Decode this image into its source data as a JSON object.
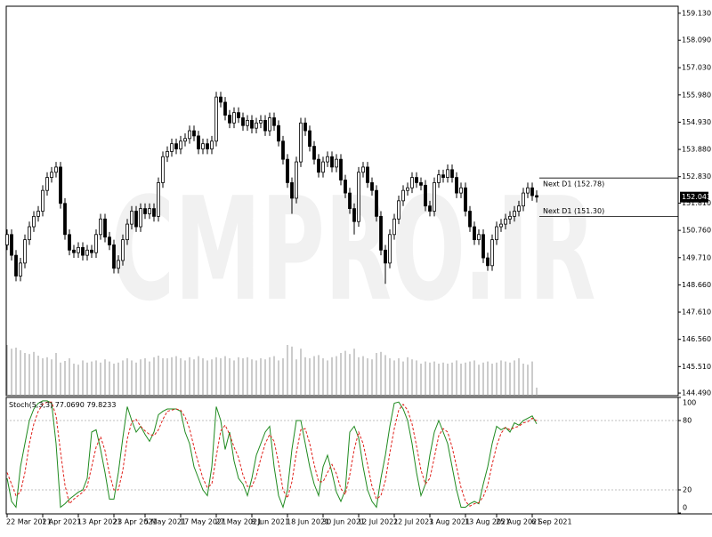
{
  "watermark": "CMPRO.IR",
  "chart_data": [
    {
      "type": "candlestick",
      "categories": [
        "22 Mar 2021",
        null,
        null,
        null,
        null,
        null,
        null,
        null,
        "1 Apr 2021",
        null,
        null,
        null,
        null,
        null,
        null,
        null,
        "13 Apr 2021",
        null,
        null,
        null,
        null,
        null,
        null,
        null,
        "23 Apr 2021",
        null,
        null,
        null,
        null,
        null,
        null,
        "5 May 2021",
        null,
        null,
        null,
        null,
        null,
        null,
        null,
        "17 May 2021",
        null,
        null,
        null,
        null,
        null,
        null,
        null,
        "27 May 2021",
        null,
        null,
        null,
        null,
        null,
        null,
        null,
        "8 Jun 2021",
        null,
        null,
        null,
        null,
        null,
        null,
        null,
        "18 Jun 2021",
        null,
        null,
        null,
        null,
        null,
        null,
        null,
        "30 Jun 2021",
        null,
        null,
        null,
        null,
        null,
        null,
        null,
        "12 Jul 2021",
        null,
        null,
        null,
        null,
        null,
        null,
        null,
        "22 Jul 2021",
        null,
        null,
        null,
        null,
        null,
        null,
        null,
        "3 Aug 2021",
        null,
        null,
        null,
        null,
        null,
        null,
        null,
        "13 Aug 2021",
        null,
        null,
        null,
        null,
        null,
        null,
        "25 Aug 2021",
        null,
        null,
        null,
        null,
        null,
        null,
        null,
        "6 Sep 2021",
        null
      ],
      "open": [
        150.2,
        150.6,
        149.8,
        149.0,
        149.5,
        150.4,
        150.9,
        151.3,
        151.5,
        152.3,
        152.8,
        153.0,
        153.2,
        151.8,
        150.6,
        150.0,
        149.9,
        150.1,
        149.8,
        150.0,
        149.9,
        150.6,
        151.2,
        150.5,
        150.2,
        149.3,
        149.6,
        150.4,
        151.0,
        151.5,
        150.9,
        151.6,
        151.4,
        151.6,
        151.3,
        152.6,
        153.6,
        153.8,
        154.1,
        153.9,
        154.2,
        154.3,
        154.6,
        154.4,
        153.9,
        154.1,
        153.9,
        154.2,
        155.9,
        155.7,
        155.2,
        154.9,
        155.3,
        155.1,
        154.8,
        155.0,
        154.7,
        154.9,
        155.0,
        154.6,
        155.1,
        154.8,
        154.2,
        153.5,
        152.6,
        152.0,
        153.4,
        154.9,
        154.6,
        154.0,
        153.5,
        153.0,
        153.4,
        153.6,
        153.2,
        153.5,
        152.7,
        152.2,
        151.6,
        151.1,
        153.0,
        153.2,
        152.6,
        152.3,
        151.3,
        150.0,
        149.5,
        150.6,
        151.2,
        151.9,
        152.3,
        152.4,
        152.8,
        152.6,
        152.5,
        151.7,
        151.5,
        152.6,
        152.9,
        152.8,
        153.1,
        152.8,
        152.2,
        152.4,
        151.5,
        150.9,
        150.4,
        150.6,
        149.7,
        149.4,
        150.4,
        150.9,
        151.0,
        151.2,
        151.3,
        151.5,
        151.7,
        152.2,
        152.4,
        152.1
      ],
      "high": [
        150.8,
        150.8,
        150.0,
        149.7,
        150.6,
        151.1,
        151.5,
        151.7,
        152.5,
        153.0,
        153.2,
        153.4,
        153.4,
        152.0,
        150.8,
        150.2,
        150.3,
        150.3,
        150.2,
        150.2,
        150.8,
        151.4,
        151.4,
        150.7,
        150.4,
        149.8,
        150.6,
        151.2,
        151.7,
        151.7,
        151.8,
        151.8,
        151.8,
        151.8,
        152.8,
        153.8,
        154.0,
        154.3,
        154.3,
        154.4,
        154.5,
        154.8,
        154.8,
        154.6,
        154.3,
        154.3,
        154.4,
        156.1,
        156.1,
        155.9,
        155.4,
        155.5,
        155.5,
        155.3,
        155.2,
        155.2,
        155.1,
        155.2,
        155.2,
        155.3,
        155.3,
        155.0,
        154.4,
        153.7,
        152.8,
        153.6,
        155.1,
        155.1,
        154.8,
        154.2,
        153.7,
        153.6,
        153.8,
        153.8,
        153.7,
        153.7,
        152.9,
        152.4,
        151.8,
        153.2,
        153.4,
        153.4,
        152.8,
        152.5,
        151.5,
        150.2,
        150.8,
        151.4,
        152.1,
        152.5,
        152.6,
        153.0,
        153.0,
        152.8,
        152.7,
        151.9,
        152.8,
        153.1,
        153.1,
        153.3,
        153.3,
        153.0,
        152.6,
        152.6,
        151.7,
        151.1,
        150.8,
        150.8,
        149.9,
        150.6,
        151.1,
        151.2,
        151.4,
        151.5,
        151.7,
        151.9,
        152.4,
        152.6,
        152.6,
        152.3
      ],
      "low": [
        150.0,
        149.6,
        148.8,
        148.8,
        149.3,
        150.2,
        150.7,
        151.1,
        151.3,
        152.1,
        152.6,
        152.8,
        151.6,
        150.4,
        149.8,
        149.7,
        149.7,
        149.6,
        149.6,
        149.7,
        149.7,
        150.4,
        150.3,
        150.0,
        149.1,
        149.1,
        149.4,
        150.2,
        150.8,
        150.7,
        150.7,
        151.2,
        151.2,
        151.1,
        151.1,
        152.4,
        153.4,
        153.6,
        153.7,
        153.7,
        154.0,
        154.1,
        154.2,
        153.7,
        153.7,
        153.7,
        153.7,
        154.0,
        155.5,
        155.0,
        154.7,
        154.7,
        154.9,
        154.6,
        154.6,
        154.5,
        154.5,
        154.7,
        154.4,
        154.4,
        154.6,
        154.0,
        153.3,
        152.4,
        151.4,
        151.8,
        153.2,
        154.4,
        153.8,
        153.3,
        152.8,
        152.8,
        153.2,
        153.0,
        153.0,
        152.5,
        152.0,
        151.4,
        150.6,
        150.9,
        152.8,
        152.4,
        152.1,
        151.1,
        149.8,
        148.7,
        149.3,
        150.4,
        151.0,
        151.7,
        152.1,
        152.2,
        152.4,
        152.3,
        151.5,
        151.3,
        151.3,
        152.4,
        152.6,
        152.6,
        152.6,
        152.0,
        152.0,
        151.3,
        150.7,
        150.2,
        150.2,
        149.5,
        149.2,
        149.2,
        150.2,
        150.7,
        150.8,
        151.0,
        151.1,
        151.3,
        151.5,
        152.0,
        151.9,
        151.84
      ],
      "close": [
        150.6,
        149.8,
        149.0,
        149.5,
        150.4,
        150.9,
        151.3,
        151.5,
        152.3,
        152.8,
        153.0,
        153.2,
        151.8,
        150.6,
        150.0,
        149.9,
        150.1,
        149.8,
        150.0,
        149.9,
        150.6,
        151.2,
        150.5,
        150.2,
        149.3,
        149.6,
        150.4,
        151.0,
        151.5,
        150.9,
        151.6,
        151.4,
        151.6,
        151.3,
        152.6,
        153.6,
        153.8,
        154.1,
        153.9,
        154.2,
        154.3,
        154.6,
        154.4,
        153.9,
        154.1,
        153.9,
        154.2,
        155.9,
        155.7,
        155.2,
        154.9,
        155.3,
        155.1,
        154.8,
        155.0,
        154.7,
        154.9,
        155.0,
        154.6,
        155.1,
        154.8,
        154.2,
        153.5,
        152.6,
        152.0,
        153.4,
        154.9,
        154.6,
        154.0,
        153.5,
        153.0,
        153.4,
        153.6,
        153.2,
        153.5,
        152.7,
        152.2,
        151.6,
        151.1,
        153.0,
        153.2,
        152.6,
        152.3,
        151.3,
        150.0,
        149.5,
        150.6,
        151.2,
        151.9,
        152.3,
        152.4,
        152.8,
        152.6,
        152.5,
        151.7,
        151.5,
        152.6,
        152.9,
        152.8,
        153.1,
        152.8,
        152.2,
        152.4,
        151.5,
        150.9,
        150.4,
        150.6,
        149.7,
        149.4,
        150.4,
        150.9,
        151.0,
        151.2,
        151.3,
        151.5,
        151.7,
        152.2,
        152.4,
        152.1,
        152.043
      ],
      "volumes": [
        95,
        88,
        90,
        85,
        80,
        78,
        82,
        75,
        70,
        72,
        68,
        80,
        62,
        65,
        70,
        60,
        58,
        66,
        62,
        64,
        66,
        62,
        68,
        64,
        60,
        62,
        66,
        70,
        66,
        62,
        68,
        70,
        64,
        72,
        75,
        70,
        70,
        72,
        74,
        70,
        66,
        72,
        68,
        74,
        70,
        66,
        68,
        72,
        70,
        74,
        70,
        66,
        72,
        70,
        72,
        68,
        66,
        70,
        68,
        72,
        74,
        66,
        70,
        95,
        92,
        68,
        88,
        72,
        70,
        74,
        76,
        70,
        66,
        72,
        74,
        80,
        84,
        78,
        88,
        72,
        74,
        70,
        68,
        80,
        82,
        76,
        70,
        66,
        70,
        64,
        72,
        68,
        66,
        60,
        64,
        62,
        64,
        60,
        62,
        60,
        62,
        66,
        60,
        62,
        64,
        66,
        58,
        62,
        64,
        60,
        62,
        66,
        64,
        62,
        66,
        70,
        60,
        58,
        64,
        15
      ],
      "volume_ylim": [
        0,
        100
      ],
      "volume_color": "#9a9a9a",
      "up_color": "#ffffff",
      "down_color": "#000000",
      "ylim": [
        144.39,
        159.4
      ],
      "yticks": [
        {
          "value": 159.13,
          "label": "159.130"
        },
        {
          "value": 158.09,
          "label": "158.090"
        },
        {
          "value": 157.03,
          "label": "157.030"
        },
        {
          "value": 155.98,
          "label": "155.980"
        },
        {
          "value": 154.93,
          "label": "154.930"
        },
        {
          "value": 153.88,
          "label": "153.880"
        },
        {
          "value": 152.83,
          "label": "152.830"
        },
        {
          "value": 151.81,
          "label": "151.810"
        },
        {
          "value": 150.76,
          "label": "150.760"
        },
        {
          "value": 149.71,
          "label": "149.710"
        },
        {
          "value": 148.66,
          "label": "148.660"
        },
        {
          "value": 147.61,
          "label": "147.610"
        },
        {
          "value": 146.56,
          "label": "146.560"
        },
        {
          "value": 145.51,
          "label": "145.510"
        },
        {
          "value": 144.49,
          "label": "144.490"
        }
      ],
      "current_price": {
        "value": 152.043,
        "label": "152.043"
      },
      "annotations": [
        {
          "value": 152.78,
          "label": "Next D1 (152.78)"
        },
        {
          "value": 151.3,
          "label": "Next D1 (151.30)"
        }
      ]
    },
    {
      "type": "line",
      "title": "Stoch(5,3,3)",
      "series": [
        {
          "color": "#1f8a1f",
          "dashed": false,
          "last_label": "77.0690",
          "values": [
            30,
            10,
            5,
            40,
            60,
            80,
            90,
            95,
            97,
            97,
            95,
            60,
            5,
            8,
            12,
            15,
            18,
            20,
            30,
            70,
            72,
            55,
            35,
            12,
            12,
            35,
            65,
            92,
            80,
            70,
            75,
            68,
            62,
            70,
            85,
            88,
            90,
            90,
            90,
            88,
            70,
            60,
            40,
            30,
            20,
            15,
            40,
            92,
            80,
            55,
            70,
            45,
            30,
            25,
            15,
            30,
            50,
            60,
            70,
            75,
            40,
            15,
            5,
            20,
            55,
            80,
            80,
            60,
            40,
            25,
            15,
            40,
            50,
            35,
            18,
            10,
            20,
            70,
            75,
            65,
            40,
            20,
            10,
            5,
            30,
            50,
            75,
            95,
            96,
            90,
            80,
            60,
            35,
            15,
            25,
            50,
            70,
            80,
            70,
            60,
            40,
            20,
            5,
            5,
            8,
            10,
            8,
            25,
            40,
            60,
            75,
            72,
            74,
            70,
            78,
            76,
            80,
            82,
            84,
            77.069
          ]
        },
        {
          "color": "#e0201a",
          "dashed": true,
          "last_label": "79.8233",
          "values": [
            35,
            25,
            15,
            18,
            35,
            60,
            77,
            88,
            94,
            96,
            96,
            84,
            53,
            24,
            8,
            12,
            15,
            18,
            23,
            40,
            57,
            66,
            54,
            34,
            20,
            20,
            37,
            64,
            79,
            81,
            75,
            71,
            68,
            67,
            72,
            81,
            88,
            89,
            90,
            89,
            83,
            73,
            57,
            43,
            30,
            22,
            25,
            49,
            71,
            76,
            68,
            57,
            48,
            33,
            23,
            23,
            32,
            47,
            60,
            68,
            62,
            43,
            20,
            13,
            27,
            52,
            72,
            73,
            60,
            42,
            27,
            27,
            35,
            42,
            34,
            21,
            16,
            33,
            55,
            70,
            60,
            42,
            23,
            12,
            15,
            28,
            52,
            73,
            89,
            94,
            89,
            77,
            58,
            37,
            25,
            30,
            48,
            67,
            73,
            70,
            57,
            40,
            22,
            10,
            6,
            8,
            9,
            14,
            24,
            42,
            58,
            69,
            74,
            72,
            74,
            75,
            78,
            79,
            82,
            79.8233
          ]
        }
      ],
      "ylim": [
        0,
        100
      ],
      "yticks": [
        0,
        20,
        80,
        100
      ],
      "levels": [
        20,
        80
      ]
    }
  ]
}
